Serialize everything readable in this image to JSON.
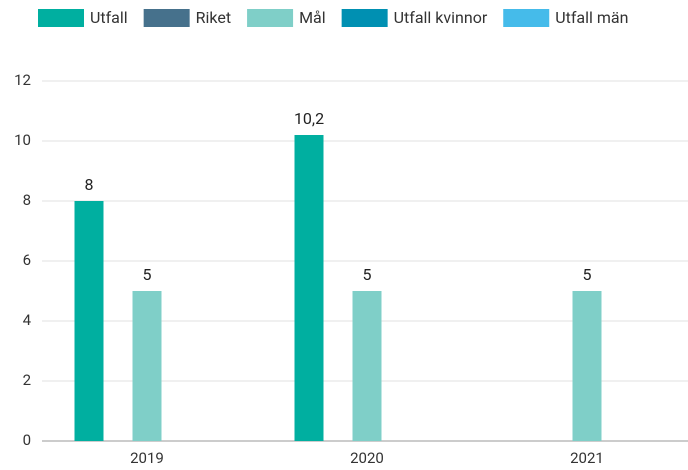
{
  "chart_data": {
    "type": "bar",
    "categories": [
      "2019",
      "2020",
      "2021"
    ],
    "series": [
      {
        "name": "Utfall",
        "color": "#00afa0",
        "values": [
          8,
          10.2,
          null
        ],
        "value_labels": [
          "8",
          "10,2",
          null
        ]
      },
      {
        "name": "Riket",
        "color": "#46718c",
        "values": [
          null,
          null,
          null
        ]
      },
      {
        "name": "Mål",
        "color": "#7fcfc8",
        "values": [
          5,
          5,
          5
        ]
      },
      {
        "name": "Utfall kvinnor",
        "color": "#0090b2",
        "values": [
          null,
          null,
          null
        ]
      },
      {
        "name": "Utfall män",
        "color": "#45bbea",
        "values": [
          null,
          null,
          null
        ]
      }
    ],
    "ylim": [
      0,
      12
    ],
    "yticks": [
      0,
      2,
      4,
      6,
      8,
      10,
      12
    ],
    "grid": true,
    "legend": "top"
  }
}
